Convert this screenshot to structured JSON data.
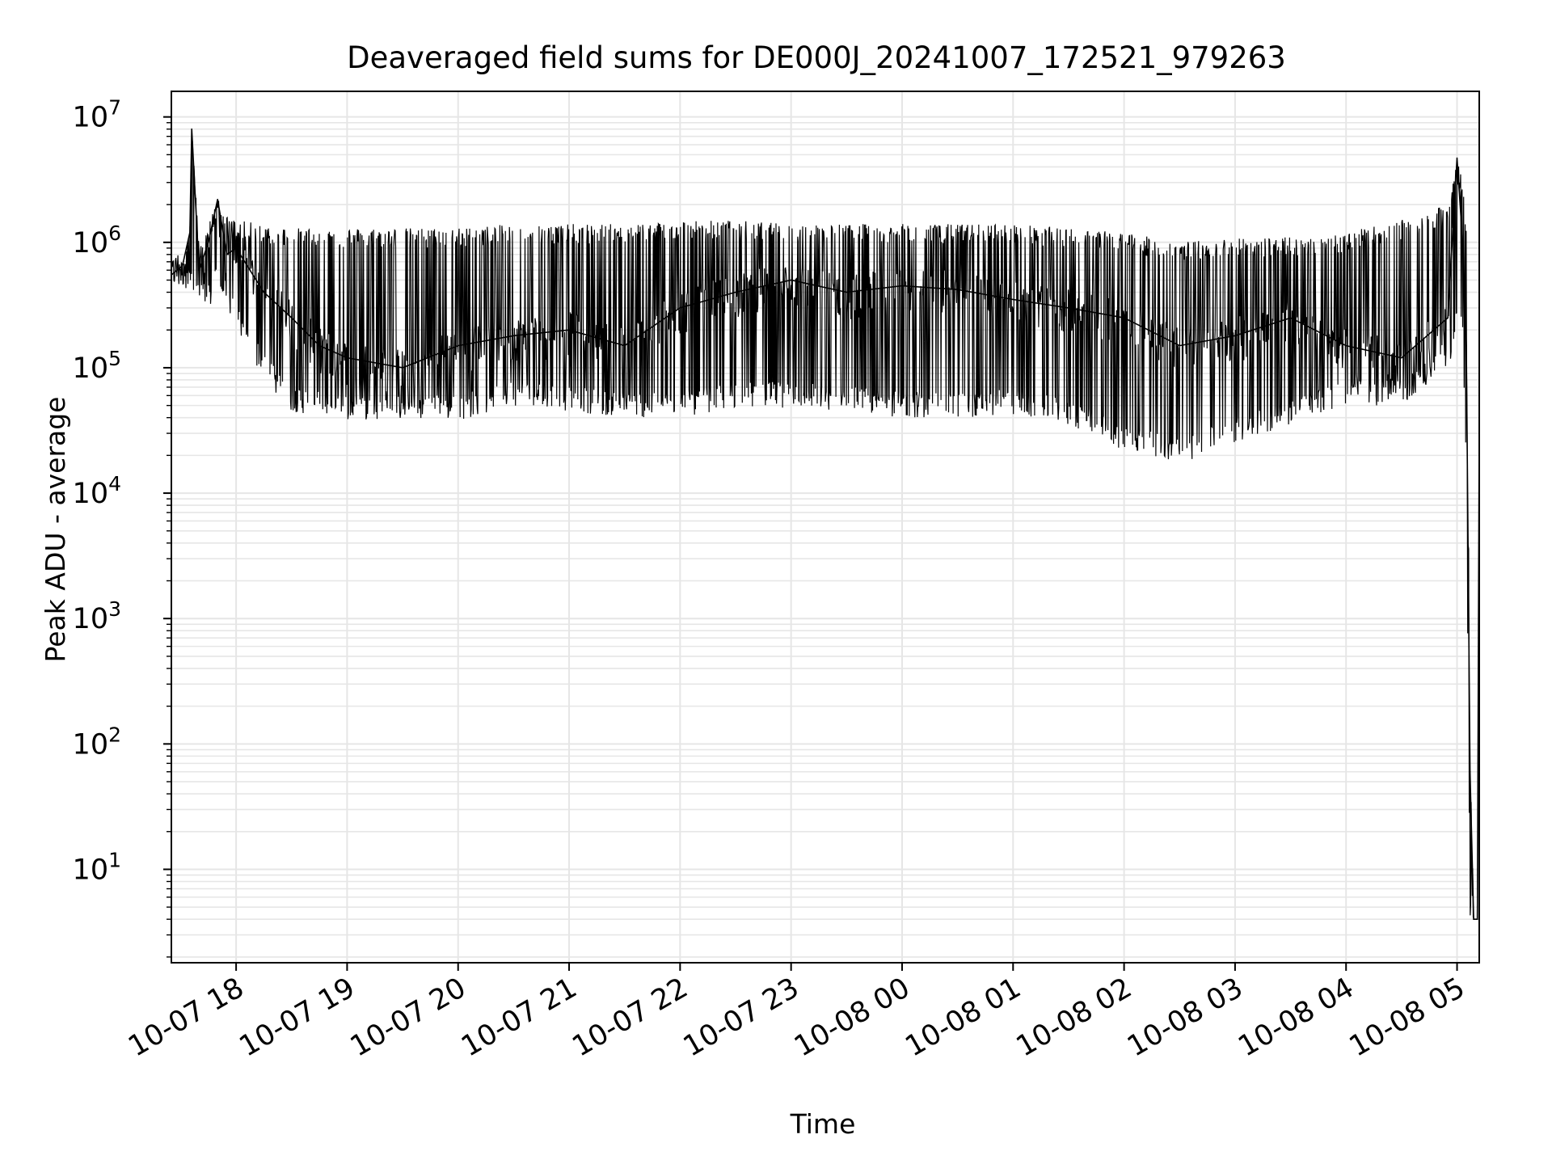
{
  "chart_data": {
    "type": "line",
    "title": "Deaveraged field sums for DE000J_20241007_172521_979263",
    "xlabel": "Time",
    "ylabel": "Peak ADU - average",
    "yscale": "log",
    "ylim": [
      1.8,
      16000000
    ],
    "xlim": [
      "2024-10-07 17:25",
      "2024-10-08 05:12"
    ],
    "x_ticks": [
      "10-07 18",
      "10-07 19",
      "10-07 20",
      "10-07 21",
      "10-07 22",
      "10-07 23",
      "10-08 00",
      "10-08 01",
      "10-08 02",
      "10-08 03",
      "10-08 04",
      "10-08 05"
    ],
    "y_ticks": [
      {
        "base": "10",
        "exp": "1"
      },
      {
        "base": "10",
        "exp": "2"
      },
      {
        "base": "10",
        "exp": "3"
      },
      {
        "base": "10",
        "exp": "4"
      },
      {
        "base": "10",
        "exp": "5"
      },
      {
        "base": "10",
        "exp": "6"
      },
      {
        "base": "10",
        "exp": "7"
      }
    ],
    "grid": true,
    "line_color": "#000000",
    "grid_color": "#e6e6e6",
    "series": [
      {
        "x": [
          "2024-10-07 17:25",
          "2024-10-07 17:31",
          "2024-10-07 17:35",
          "2024-10-07 17:36",
          "2024-10-07 17:40",
          "2024-10-07 17:45",
          "2024-10-07 17:50",
          "2024-10-07 17:55",
          "2024-10-07 18:00",
          "2024-10-07 18:15",
          "2024-10-07 18:30",
          "2024-10-07 18:45",
          "2024-10-07 19:00",
          "2024-10-07 19:30",
          "2024-10-07 20:00",
          "2024-10-07 20:30",
          "2024-10-07 21:00",
          "2024-10-07 21:30",
          "2024-10-07 22:00",
          "2024-10-07 22:30",
          "2024-10-07 23:00",
          "2024-10-07 23:30",
          "2024-10-08 00:00",
          "2024-10-08 00:30",
          "2024-10-08 01:00",
          "2024-10-08 01:30",
          "2024-10-08 02:00",
          "2024-10-08 02:30",
          "2024-10-08 03:00",
          "2024-10-08 03:30",
          "2024-10-08 04:00",
          "2024-10-08 04:30",
          "2024-10-08 04:55",
          "2024-10-08 05:00",
          "2024-10-08 05:03",
          "2024-10-08 05:05",
          "2024-10-08 05:07",
          "2024-10-08 05:09",
          "2024-10-08 05:11",
          "2024-10-08 05:12"
        ],
        "y": [
          550000,
          650000,
          1200000,
          8000000,
          600000,
          1000000,
          2200000,
          800000,
          900000,
          400000,
          250000,
          150000,
          120000,
          100000,
          150000,
          180000,
          200000,
          150000,
          300000,
          400000,
          500000,
          400000,
          450000,
          420000,
          350000,
          300000,
          250000,
          150000,
          180000,
          250000,
          150000,
          120000,
          250000,
          4700000,
          1000000,
          150000,
          60,
          4,
          4,
          40000
        ],
        "envelope_high": [
          700000,
          900000,
          1400000,
          8000000,
          900000,
          1400000,
          2200000,
          1600000,
          1500000,
          1400000,
          1300000,
          1300000,
          1300000,
          1300000,
          1300000,
          1400000,
          1400000,
          1400000,
          1500000,
          1500000,
          1400000,
          1400000,
          1400000,
          1400000,
          1400000,
          1300000,
          1200000,
          1000000,
          1100000,
          1100000,
          1200000,
          1500000,
          2000000,
          4700000,
          3000000,
          1500000,
          140,
          4,
          4,
          40000
        ],
        "envelope_low": [
          500000,
          450000,
          400000,
          350000,
          300000,
          300000,
          400000,
          300000,
          200000,
          80000,
          45000,
          40000,
          38000,
          38000,
          38000,
          50000,
          45000,
          40000,
          40000,
          48000,
          48000,
          45000,
          40000,
          40000,
          42000,
          35000,
          22000,
          17000,
          25000,
          35000,
          50000,
          50000,
          90000,
          200000,
          150000,
          10000,
          4,
          4,
          4,
          3500
        ]
      }
    ]
  }
}
